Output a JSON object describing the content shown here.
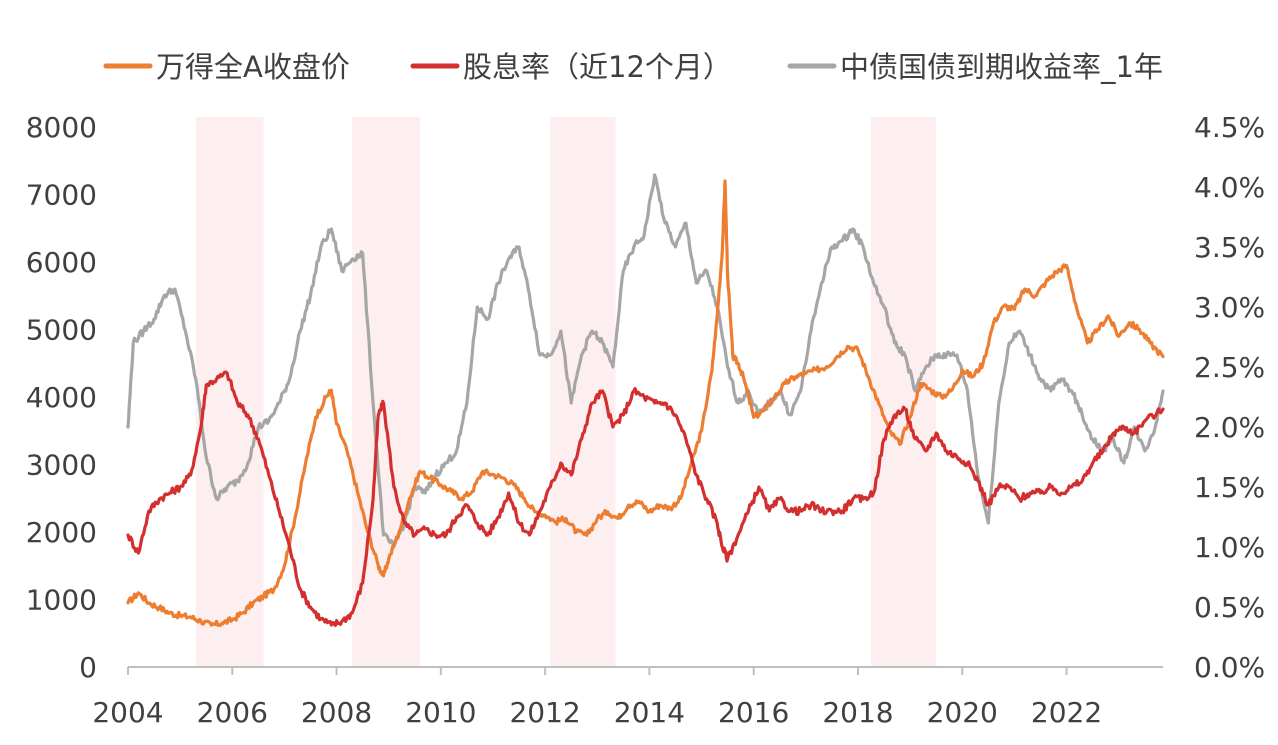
{
  "chart_data": {
    "type": "line",
    "title": "",
    "xlabel": "",
    "ylabel": "",
    "y2label": "",
    "xlim": [
      2004,
      2023.85
    ],
    "ylim": [
      0,
      8000
    ],
    "y2lim": [
      0,
      4.5
    ],
    "x_ticks": [
      2004,
      2006,
      2008,
      2010,
      2012,
      2014,
      2016,
      2018,
      2020,
      2022
    ],
    "x_tick_labels": [
      "2004",
      "2006",
      "2008",
      "2010",
      "2012",
      "2014",
      "2016",
      "2018",
      "2020",
      "2022"
    ],
    "y_ticks": [
      0,
      1000,
      2000,
      3000,
      4000,
      5000,
      6000,
      7000,
      8000
    ],
    "y_tick_labels": [
      "0",
      "1000",
      "2000",
      "3000",
      "4000",
      "5000",
      "6000",
      "7000",
      "8000"
    ],
    "y2_ticks": [
      0,
      0.5,
      1.0,
      1.5,
      2.0,
      2.5,
      3.0,
      3.5,
      4.0,
      4.5
    ],
    "y2_tick_labels": [
      "0.0%",
      "0.5%",
      "1.0%",
      "1.5%",
      "2.0%",
      "2.5%",
      "3.0%",
      "3.5%",
      "4.0%",
      "4.5%"
    ],
    "grid": false,
    "legend_position": "top",
    "shaded_periods": [
      [
        2005.3,
        2006.6
      ],
      [
        2008.3,
        2009.6
      ],
      [
        2012.1,
        2013.35
      ],
      [
        2018.25,
        2019.5
      ]
    ],
    "series": [
      {
        "name": "万得全A收盘价",
        "axis": "left",
        "color": "#ED7D31",
        "x": [
          2004.0,
          2004.2,
          2004.4,
          2004.6,
          2004.8,
          2005.0,
          2005.2,
          2005.4,
          2005.6,
          2005.8,
          2006.0,
          2006.2,
          2006.4,
          2006.6,
          2006.8,
          2007.0,
          2007.2,
          2007.4,
          2007.6,
          2007.8,
          2007.9,
          2008.0,
          2008.2,
          2008.4,
          2008.6,
          2008.8,
          2008.9,
          2009.0,
          2009.2,
          2009.4,
          2009.6,
          2009.8,
          2010.0,
          2010.2,
          2010.4,
          2010.6,
          2010.8,
          2011.0,
          2011.2,
          2011.4,
          2011.6,
          2011.8,
          2012.0,
          2012.2,
          2012.4,
          2012.6,
          2012.8,
          2013.0,
          2013.2,
          2013.4,
          2013.6,
          2013.8,
          2014.0,
          2014.2,
          2014.4,
          2014.6,
          2014.8,
          2015.0,
          2015.2,
          2015.3,
          2015.4,
          2015.45,
          2015.5,
          2015.6,
          2015.7,
          2015.8,
          2016.0,
          2016.2,
          2016.4,
          2016.6,
          2016.8,
          2017.0,
          2017.2,
          2017.4,
          2017.6,
          2017.8,
          2018.0,
          2018.2,
          2018.4,
          2018.6,
          2018.8,
          2019.0,
          2019.2,
          2019.4,
          2019.6,
          2019.8,
          2020.0,
          2020.2,
          2020.4,
          2020.6,
          2020.8,
          2021.0,
          2021.2,
          2021.4,
          2021.6,
          2021.8,
          2022.0,
          2022.2,
          2022.4,
          2022.6,
          2022.8,
          2023.0,
          2023.2,
          2023.4,
          2023.6,
          2023.85
        ],
        "values": [
          950,
          1100,
          950,
          880,
          800,
          760,
          740,
          680,
          620,
          650,
          700,
          800,
          950,
          1050,
          1150,
          1500,
          2200,
          3000,
          3700,
          4000,
          4100,
          3600,
          3200,
          2600,
          2000,
          1500,
          1350,
          1600,
          2000,
          2500,
          2900,
          2800,
          2700,
          2600,
          2500,
          2600,
          2900,
          2850,
          2800,
          2700,
          2500,
          2300,
          2250,
          2150,
          2200,
          2000,
          1950,
          2200,
          2300,
          2200,
          2400,
          2450,
          2300,
          2400,
          2350,
          2500,
          3000,
          3500,
          4400,
          5200,
          6200,
          7200,
          5800,
          4600,
          4500,
          4300,
          3700,
          3800,
          4000,
          4200,
          4300,
          4350,
          4400,
          4450,
          4600,
          4750,
          4700,
          4300,
          3900,
          3500,
          3300,
          3700,
          4200,
          4100,
          4000,
          4100,
          4400,
          4300,
          4500,
          5100,
          5350,
          5300,
          5600,
          5500,
          5700,
          5850,
          5950,
          5300,
          4800,
          5000,
          5200,
          4900,
          5100,
          5000,
          4800,
          4600
        ]
      },
      {
        "name": "股息率（近12个月）",
        "axis": "right",
        "color": "#D32F2F",
        "x": [
          2004.0,
          2004.2,
          2004.4,
          2004.6,
          2004.8,
          2005.0,
          2005.2,
          2005.4,
          2005.5,
          2005.7,
          2005.9,
          2006.1,
          2006.3,
          2006.5,
          2006.7,
          2006.9,
          2007.1,
          2007.3,
          2007.5,
          2007.7,
          2007.9,
          2008.1,
          2008.3,
          2008.5,
          2008.7,
          2008.8,
          2008.9,
          2009.1,
          2009.3,
          2009.5,
          2009.7,
          2009.9,
          2010.1,
          2010.3,
          2010.5,
          2010.7,
          2010.9,
          2011.1,
          2011.3,
          2011.5,
          2011.7,
          2011.9,
          2012.1,
          2012.3,
          2012.5,
          2012.7,
          2012.9,
          2013.1,
          2013.3,
          2013.5,
          2013.7,
          2013.9,
          2014.1,
          2014.3,
          2014.5,
          2014.7,
          2014.9,
          2015.1,
          2015.3,
          2015.4,
          2015.5,
          2015.7,
          2015.9,
          2016.1,
          2016.3,
          2016.5,
          2016.7,
          2016.9,
          2017.1,
          2017.3,
          2017.5,
          2017.7,
          2017.9,
          2018.1,
          2018.3,
          2018.5,
          2018.7,
          2018.9,
          2019.1,
          2019.3,
          2019.5,
          2019.7,
          2019.9,
          2020.1,
          2020.3,
          2020.5,
          2020.7,
          2020.9,
          2021.1,
          2021.3,
          2021.5,
          2021.7,
          2021.9,
          2022.1,
          2022.3,
          2022.5,
          2022.7,
          2022.9,
          2023.1,
          2023.3,
          2023.5,
          2023.85
        ],
        "values": [
          1.1,
          0.95,
          1.3,
          1.4,
          1.45,
          1.5,
          1.6,
          2.0,
          2.35,
          2.4,
          2.45,
          2.2,
          2.1,
          1.9,
          1.6,
          1.3,
          1.0,
          0.65,
          0.5,
          0.4,
          0.35,
          0.38,
          0.45,
          0.7,
          1.4,
          2.1,
          2.2,
          1.5,
          1.2,
          1.1,
          1.15,
          1.1,
          1.1,
          1.25,
          1.35,
          1.2,
          1.1,
          1.25,
          1.45,
          1.2,
          1.1,
          1.3,
          1.5,
          1.7,
          1.6,
          1.9,
          2.2,
          2.3,
          2.0,
          2.1,
          2.3,
          2.25,
          2.2,
          2.2,
          2.1,
          1.9,
          1.6,
          1.4,
          1.2,
          1.0,
          0.9,
          1.1,
          1.3,
          1.5,
          1.3,
          1.4,
          1.3,
          1.3,
          1.35,
          1.3,
          1.3,
          1.3,
          1.4,
          1.4,
          1.45,
          1.9,
          2.1,
          2.15,
          1.9,
          1.8,
          1.95,
          1.8,
          1.75,
          1.7,
          1.55,
          1.35,
          1.5,
          1.5,
          1.4,
          1.45,
          1.45,
          1.5,
          1.45,
          1.5,
          1.55,
          1.7,
          1.8,
          1.95,
          2.0,
          1.95,
          2.05,
          2.15
        ]
      },
      {
        "name": "中债国债到期收益率_1年",
        "axis": "right",
        "color": "#A6A6A6",
        "x": [
          2004.0,
          2004.1,
          2004.3,
          2004.5,
          2004.7,
          2004.9,
          2005.1,
          2005.3,
          2005.5,
          2005.7,
          2005.9,
          2006.1,
          2006.3,
          2006.5,
          2006.7,
          2006.9,
          2007.1,
          2007.3,
          2007.5,
          2007.7,
          2007.9,
          2008.1,
          2008.3,
          2008.5,
          2008.7,
          2008.9,
          2009.1,
          2009.3,
          2009.5,
          2009.7,
          2009.9,
          2010.1,
          2010.3,
          2010.5,
          2010.7,
          2010.9,
          2011.1,
          2011.3,
          2011.5,
          2011.7,
          2011.9,
          2012.1,
          2012.3,
          2012.5,
          2012.7,
          2012.9,
          2013.1,
          2013.3,
          2013.5,
          2013.7,
          2013.9,
          2014.1,
          2014.3,
          2014.5,
          2014.7,
          2014.9,
          2015.1,
          2015.3,
          2015.5,
          2015.7,
          2015.9,
          2016.1,
          2016.3,
          2016.5,
          2016.7,
          2016.9,
          2017.1,
          2017.3,
          2017.5,
          2017.7,
          2017.9,
          2018.1,
          2018.3,
          2018.5,
          2018.7,
          2018.9,
          2019.1,
          2019.3,
          2019.5,
          2019.7,
          2019.9,
          2020.1,
          2020.3,
          2020.5,
          2020.7,
          2020.9,
          2021.1,
          2021.3,
          2021.5,
          2021.7,
          2021.9,
          2022.1,
          2022.3,
          2022.5,
          2022.7,
          2022.9,
          2023.1,
          2023.3,
          2023.5,
          2023.7,
          2023.85
        ],
        "values": [
          2.0,
          2.7,
          2.8,
          2.9,
          3.1,
          3.15,
          2.8,
          2.4,
          1.75,
          1.4,
          1.5,
          1.55,
          1.7,
          2.0,
          2.05,
          2.2,
          2.4,
          2.8,
          3.1,
          3.5,
          3.65,
          3.3,
          3.4,
          3.45,
          2.2,
          1.1,
          1.0,
          1.2,
          1.5,
          1.45,
          1.6,
          1.7,
          1.8,
          2.2,
          3.0,
          2.9,
          3.2,
          3.4,
          3.5,
          3.1,
          2.6,
          2.6,
          2.8,
          2.2,
          2.6,
          2.8,
          2.7,
          2.5,
          3.3,
          3.5,
          3.6,
          4.1,
          3.7,
          3.5,
          3.7,
          3.2,
          3.3,
          3.0,
          2.5,
          2.2,
          2.3,
          2.1,
          2.2,
          2.3,
          2.1,
          2.3,
          2.8,
          3.2,
          3.5,
          3.55,
          3.65,
          3.5,
          3.2,
          3.0,
          2.7,
          2.6,
          2.3,
          2.5,
          2.6,
          2.6,
          2.6,
          2.3,
          1.6,
          1.2,
          2.2,
          2.7,
          2.8,
          2.6,
          2.4,
          2.3,
          2.4,
          2.3,
          2.1,
          1.9,
          1.8,
          1.9,
          1.7,
          2.0,
          1.8,
          2.0,
          2.3
        ]
      }
    ]
  }
}
